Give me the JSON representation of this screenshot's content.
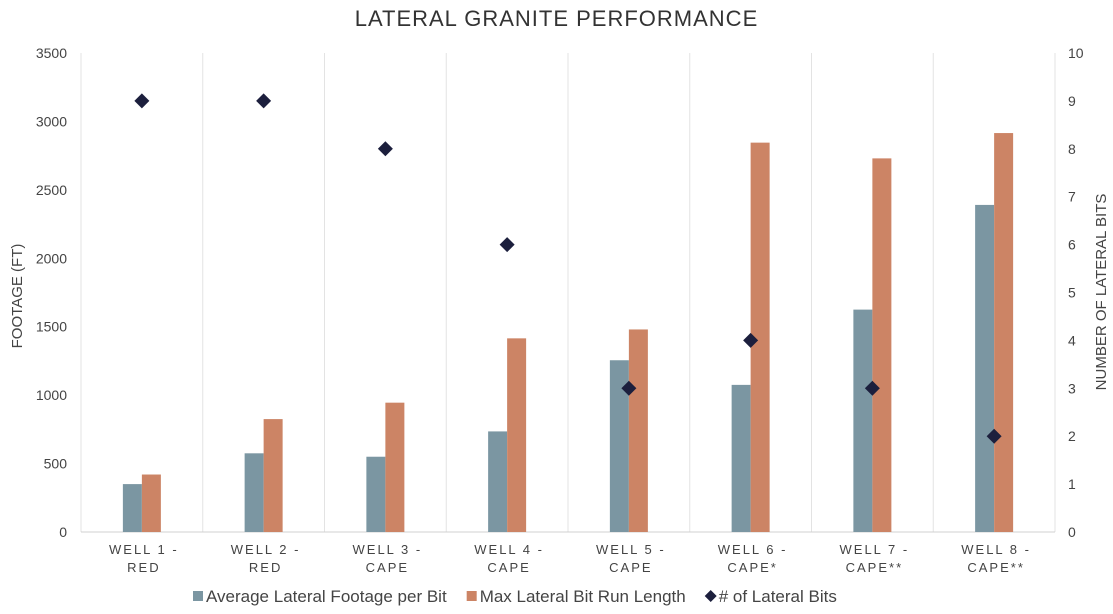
{
  "chart_data": {
    "type": "bar",
    "title": "LATERAL GRANITE PERFORMANCE",
    "categories": [
      [
        "WELL 1 -",
        "RED"
      ],
      [
        "WELL 2 -",
        "RED"
      ],
      [
        "WELL 3 -",
        "CAPE"
      ],
      [
        "WELL 4 -",
        "CAPE"
      ],
      [
        "WELL 5 -",
        "CAPE"
      ],
      [
        "WELL 6 -",
        "CAPE*"
      ],
      [
        "WELL 7 -",
        "CAPE**"
      ],
      [
        "WELL 8 -",
        "CAPE**"
      ]
    ],
    "ylabel": "FOOTAGE (FT)",
    "y2label": "NUMBER OF LATERAL BITS",
    "ylim": [
      0,
      3500
    ],
    "y_ticks": [
      0,
      500,
      1000,
      1500,
      2000,
      2500,
      3000,
      3500
    ],
    "y2lim": [
      0,
      10
    ],
    "y2_ticks": [
      0,
      1,
      2,
      3,
      4,
      5,
      6,
      7,
      8,
      9,
      10
    ],
    "legend_position": "bottom",
    "grid": "vertical category separators",
    "series": [
      {
        "name": "Average Lateral Footage per Bit",
        "type": "bar",
        "axis": "left",
        "color": "#7b96a2",
        "values": [
          350,
          575,
          550,
          735,
          1255,
          1075,
          1625,
          2390
        ]
      },
      {
        "name": "Max Lateral Bit Run Length",
        "type": "bar",
        "axis": "left",
        "color": "#cc8465",
        "values": [
          420,
          825,
          945,
          1415,
          1480,
          2845,
          2730,
          2915
        ]
      },
      {
        "name": "# of Lateral Bits",
        "type": "marker",
        "axis": "right",
        "color": "#1c1f3d",
        "values": [
          9,
          9,
          8,
          6,
          3,
          4,
          3,
          2
        ]
      }
    ]
  }
}
